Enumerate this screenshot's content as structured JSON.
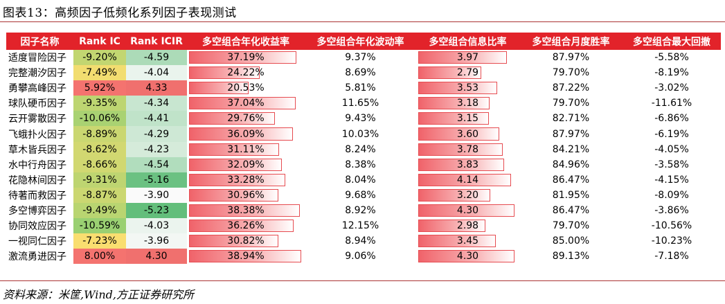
{
  "figure": {
    "title": "图表13：高频因子低频化系列因子表现测试",
    "source": "资料来源：米筐,Wind,方正证券研究所"
  },
  "table": {
    "headers": [
      "因子名称",
      "Rank IC",
      "Rank ICIR",
      "多空组合年化收益率",
      "多空组合年化波动率",
      "多空组合信息比率",
      "多空组合月度胜率",
      "多空组合最大回撤"
    ],
    "rows": [
      {
        "name": "适度冒险因子",
        "ic": "-9.20%",
        "icir": "-4.59",
        "ret": "37.19%",
        "vol": "9.37%",
        "ir": "3.97",
        "win": "87.97%",
        "dd": "-5.58%",
        "ic_v": -9.2,
        "icir_v": -4.59,
        "ret_v": 37.19,
        "ir_v": 3.97
      },
      {
        "name": "完整潮汐因子",
        "ic": "-7.49%",
        "icir": "-4.04",
        "ret": "24.22%",
        "vol": "8.69%",
        "ir": "2.79",
        "win": "79.70%",
        "dd": "-8.19%",
        "ic_v": -7.49,
        "icir_v": -4.04,
        "ret_v": 24.22,
        "ir_v": 2.79
      },
      {
        "name": "勇攀高峰因子",
        "ic": "5.92%",
        "icir": "4.33",
        "ret": "20.53%",
        "vol": "5.81%",
        "ir": "3.53",
        "win": "87.22%",
        "dd": "-3.02%",
        "ic_v": 5.92,
        "icir_v": 4.33,
        "ret_v": 20.53,
        "ir_v": 3.53
      },
      {
        "name": "球队硬币因子",
        "ic": "-9.35%",
        "icir": "-4.34",
        "ret": "37.04%",
        "vol": "11.65%",
        "ir": "3.18",
        "win": "79.70%",
        "dd": "-11.61%",
        "ic_v": -9.35,
        "icir_v": -4.34,
        "ret_v": 37.04,
        "ir_v": 3.18
      },
      {
        "name": "云开雾散因子",
        "ic": "-10.06%",
        "icir": "-4.41",
        "ret": "29.76%",
        "vol": "9.43%",
        "ir": "3.15",
        "win": "82.71%",
        "dd": "-6.86%",
        "ic_v": -10.06,
        "icir_v": -4.41,
        "ret_v": 29.76,
        "ir_v": 3.15
      },
      {
        "name": "飞蛾扑火因子",
        "ic": "-8.89%",
        "icir": "-4.29",
        "ret": "36.09%",
        "vol": "10.03%",
        "ir": "3.60",
        "win": "87.97%",
        "dd": "-6.19%",
        "ic_v": -8.89,
        "icir_v": -4.29,
        "ret_v": 36.09,
        "ir_v": 3.6
      },
      {
        "name": "草木皆兵因子",
        "ic": "-8.62%",
        "icir": "-4.23",
        "ret": "31.11%",
        "vol": "8.24%",
        "ir": "3.78",
        "win": "84.21%",
        "dd": "-4.05%",
        "ic_v": -8.62,
        "icir_v": -4.23,
        "ret_v": 31.11,
        "ir_v": 3.78
      },
      {
        "name": "水中行舟因子",
        "ic": "-8.66%",
        "icir": "-4.54",
        "ret": "32.09%",
        "vol": "8.38%",
        "ir": "3.83",
        "win": "84.96%",
        "dd": "-3.58%",
        "ic_v": -8.66,
        "icir_v": -4.54,
        "ret_v": 32.09,
        "ir_v": 3.83
      },
      {
        "name": "花隐林间因子",
        "ic": "-9.31%",
        "icir": "-5.16",
        "ret": "33.28%",
        "vol": "8.04%",
        "ir": "4.14",
        "win": "86.47%",
        "dd": "-4.15%",
        "ic_v": -9.31,
        "icir_v": -5.16,
        "ret_v": 33.28,
        "ir_v": 4.14
      },
      {
        "name": "待著而救因子",
        "ic": "-8.87%",
        "icir": "-3.90",
        "ret": "30.96%",
        "vol": "9.68%",
        "ir": "3.20",
        "win": "81.95%",
        "dd": "-8.09%",
        "ic_v": -8.87,
        "icir_v": -3.9,
        "ret_v": 30.96,
        "ir_v": 3.2
      },
      {
        "name": "多空博弈因子",
        "ic": "-9.49%",
        "icir": "-5.23",
        "ret": "38.38%",
        "vol": "8.92%",
        "ir": "4.30",
        "win": "86.47%",
        "dd": "-3.86%",
        "ic_v": -9.49,
        "icir_v": -5.23,
        "ret_v": 38.38,
        "ir_v": 4.3
      },
      {
        "name": "协同效应因子",
        "ic": "-10.59%",
        "icir": "-4.03",
        "ret": "36.26%",
        "vol": "12.15%",
        "ir": "2.98",
        "win": "79.70%",
        "dd": "-10.56%",
        "ic_v": -10.59,
        "icir_v": -4.03,
        "ret_v": 36.26,
        "ir_v": 2.98
      },
      {
        "name": "一视同仁因子",
        "ic": "-7.23%",
        "icir": "-3.96",
        "ret": "30.82%",
        "vol": "8.94%",
        "ir": "3.45",
        "win": "85.00%",
        "dd": "-10.23%",
        "ic_v": -7.23,
        "icir_v": -3.96,
        "ret_v": 30.82,
        "ir_v": 3.45
      },
      {
        "name": "激流勇进因子",
        "ic": "8.00%",
        "icir": "4.30",
        "ret": "38.94%",
        "vol": "9.06%",
        "ir": "4.30",
        "win": "89.13%",
        "dd": "-7.18%",
        "ic_v": 8.0,
        "icir_v": 4.3,
        "ret_v": 38.94,
        "ir_v": 4.3
      }
    ]
  }
}
